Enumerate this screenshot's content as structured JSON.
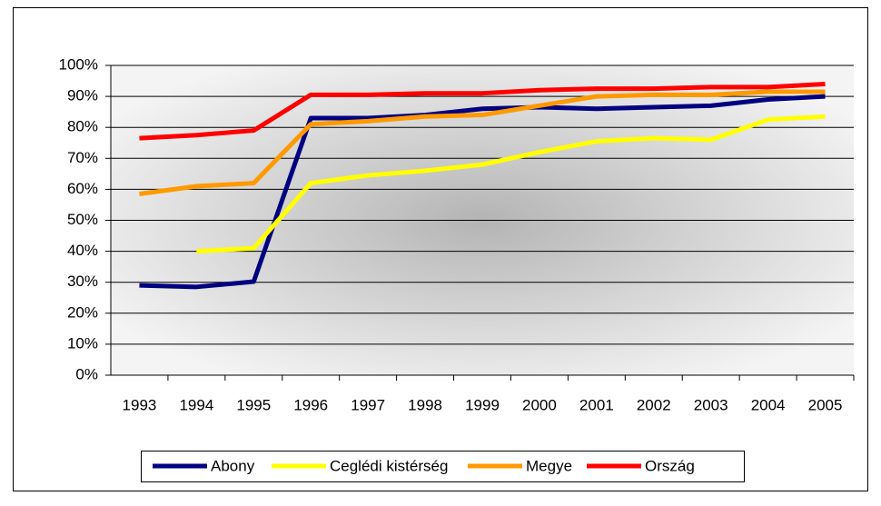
{
  "chart_data": {
    "type": "line",
    "categories": [
      "1993",
      "1994",
      "1995",
      "1996",
      "1997",
      "1998",
      "1999",
      "2000",
      "2001",
      "2002",
      "2003",
      "2004",
      "2005"
    ],
    "series": [
      {
        "name": "Abony",
        "color": "#000080",
        "values": [
          29,
          28.5,
          30.2,
          83,
          83,
          84,
          86,
          86.5,
          86,
          86.5,
          87,
          89,
          90
        ]
      },
      {
        "name": "Ceglédi kistérség",
        "color": "#ffff00",
        "values": [
          null,
          40,
          41,
          62,
          64.5,
          66,
          68,
          72,
          75.5,
          76.5,
          76,
          82.5,
          83.5
        ]
      },
      {
        "name": "Megye",
        "color": "#ff9900",
        "values": [
          58.5,
          61,
          62,
          81,
          82,
          83.5,
          84,
          87,
          90,
          90.5,
          90.5,
          91.5,
          91.5
        ]
      },
      {
        "name": "Ország",
        "color": "#ff0000",
        "values": [
          76.5,
          77.5,
          79,
          90.5,
          90.5,
          91,
          91,
          92,
          92.5,
          92.5,
          93,
          93,
          94
        ]
      }
    ],
    "ylim": [
      0,
      100
    ],
    "yticks": [
      {
        "value": 0,
        "label": "0%"
      },
      {
        "value": 10,
        "label": "10%"
      },
      {
        "value": 20,
        "label": "20%"
      },
      {
        "value": 30,
        "label": "30%"
      },
      {
        "value": 40,
        "label": "40%"
      },
      {
        "value": 50,
        "label": "50%"
      },
      {
        "value": 60,
        "label": "60%"
      },
      {
        "value": 70,
        "label": "70%"
      },
      {
        "value": 80,
        "label": "80%"
      },
      {
        "value": 90,
        "label": "90%"
      },
      {
        "value": 100,
        "label": "100%"
      }
    ],
    "grid": true,
    "legend": "bottom"
  }
}
